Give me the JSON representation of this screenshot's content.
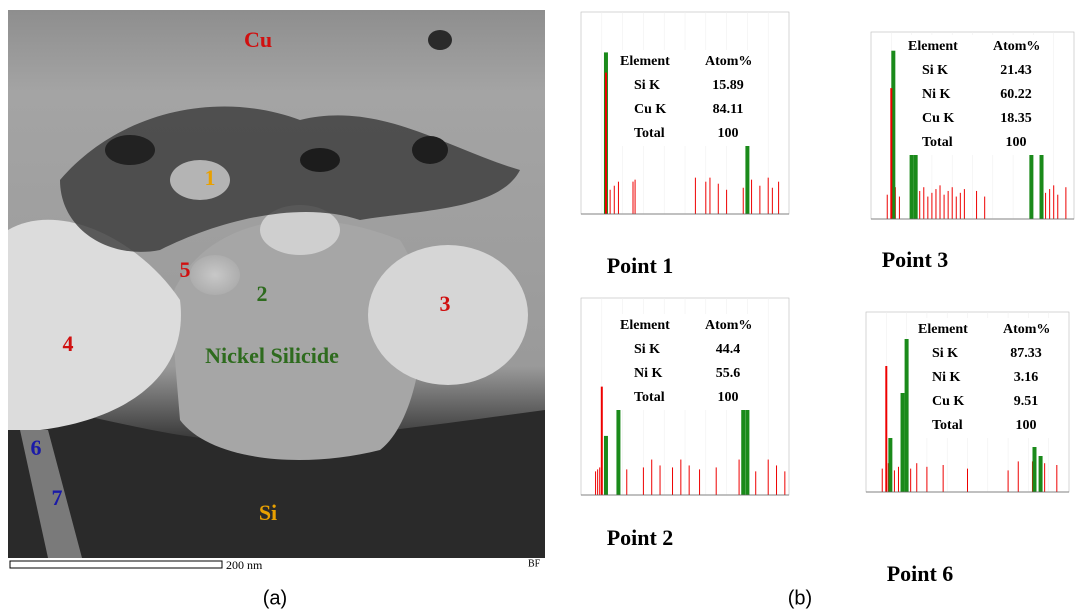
{
  "image": {
    "labels": [
      "Cu",
      "1",
      "5",
      "2",
      "Nickel Silicide",
      "3",
      "4",
      "6",
      "7",
      "Si"
    ],
    "scale_bar": "200 nm",
    "mode": "BF",
    "caption": "(a)"
  },
  "spectra": [
    {
      "title": "Point 1",
      "header": [
        "Element",
        "Atom%"
      ],
      "rows": [
        [
          "Si K",
          15.89
        ],
        [
          "Cu K",
          84.11
        ],
        [
          "Total",
          100
        ]
      ]
    },
    {
      "title": "Point 3",
      "header": [
        "Element",
        "Atom%"
      ],
      "rows": [
        [
          "Si K",
          21.43
        ],
        [
          "Ni K",
          60.22
        ],
        [
          "Cu K",
          18.35
        ],
        [
          "Total",
          100
        ]
      ]
    },
    {
      "title": "Point 2",
      "header": [
        "Element",
        "Atom%"
      ],
      "rows": [
        [
          "Si K",
          44.4
        ],
        [
          "Ni K",
          55.6
        ],
        [
          "Total",
          100
        ]
      ]
    },
    {
      "title": "Point 6",
      "header": [
        "Element",
        "Atom%"
      ],
      "rows": [
        [
          "Si K",
          87.33
        ],
        [
          "Ni K",
          3.16
        ],
        [
          "Cu K",
          9.51
        ],
        [
          "Total",
          100
        ]
      ]
    }
  ],
  "caption": "(b)"
}
